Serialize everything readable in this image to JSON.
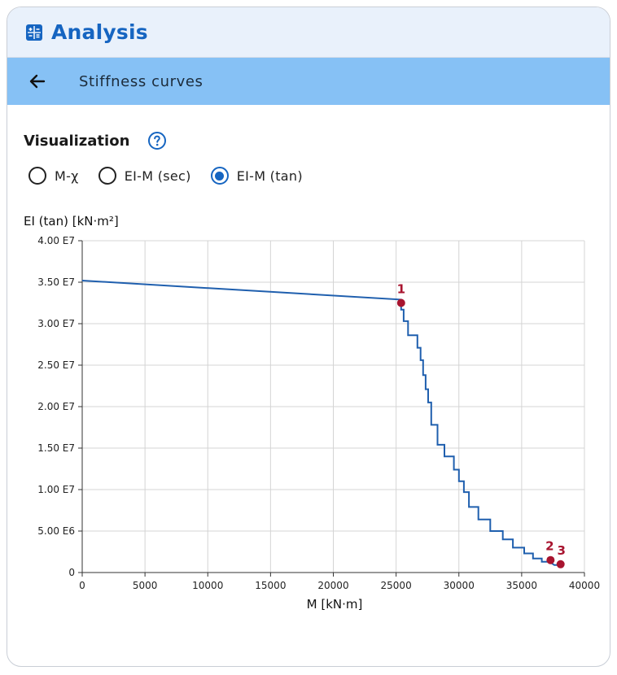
{
  "header": {
    "title": "Analysis",
    "icon": "calculator-icon",
    "accent": "#1665c1"
  },
  "subheader": {
    "title": "Stiffness curves",
    "back_icon": "arrow-left-icon"
  },
  "visualization": {
    "label": "Visualization",
    "options": [
      {
        "label": "M-χ",
        "checked": false
      },
      {
        "label": "EI-M (sec)",
        "checked": false
      },
      {
        "label": "EI-M (tan)",
        "checked": true
      }
    ]
  },
  "chart_data": {
    "type": "line",
    "ylabel": "EI (tan) [kN·m²]",
    "xlabel": "M [kN·m]",
    "xlim": [
      0,
      40000
    ],
    "ylim": [
      0,
      40000000
    ],
    "grid": true,
    "x_ticks": [
      0,
      5000,
      10000,
      15000,
      20000,
      25000,
      30000,
      35000,
      40000
    ],
    "x_tick_labels": [
      "0",
      "5000",
      "10000",
      "15000",
      "20000",
      "25000",
      "30000",
      "35000",
      "40000"
    ],
    "y_ticks": [
      0,
      5000000,
      10000000,
      15000000,
      20000000,
      25000000,
      30000000,
      35000000,
      40000000
    ],
    "y_tick_labels": [
      "0",
      "5.00 E6",
      "1.00 E7",
      "1.50 E7",
      "2.00 E7",
      "2.50 E7",
      "3.00 E7",
      "3.50 E7",
      "4.00 E7"
    ],
    "series": [
      {
        "name": "EI-M (tan)",
        "color": "#1f5fae",
        "x": [
          0,
          25400,
          25400,
          25600,
          25600,
          25950,
          25950,
          26700,
          26700,
          26950,
          26950,
          27150,
          27150,
          27350,
          27350,
          27550,
          27550,
          27800,
          27800,
          28300,
          28300,
          28850,
          28850,
          29600,
          29600,
          30000,
          30000,
          30400,
          30400,
          30800,
          30800,
          31550,
          31550,
          32500,
          32500,
          33500,
          33500,
          34300,
          34300,
          35200,
          35200,
          35900,
          35900,
          36600,
          36600,
          37200,
          37200,
          37600,
          37900
        ],
        "y": [
          35200000,
          32900000,
          31700000,
          31700000,
          30300000,
          30300000,
          28600000,
          28600000,
          27100000,
          27100000,
          25600000,
          25600000,
          23800000,
          23800000,
          22100000,
          22100000,
          20500000,
          20500000,
          17800000,
          17800000,
          15400000,
          15400000,
          14000000,
          14000000,
          12400000,
          12400000,
          11000000,
          11000000,
          9700000,
          9700000,
          7900000,
          7900000,
          6400000,
          6400000,
          5000000,
          5000000,
          4000000,
          4000000,
          3000000,
          3000000,
          2300000,
          2300000,
          1700000,
          1700000,
          1300000,
          1300000,
          1300000,
          900000,
          900000
        ]
      }
    ],
    "markers": [
      {
        "label": "1",
        "x": 25400,
        "y": 32500000
      },
      {
        "label": "2",
        "x": 37300,
        "y": 1500000
      },
      {
        "label": "3",
        "x": 38100,
        "y": 1000000
      }
    ],
    "marker_color": "#a8142f"
  }
}
